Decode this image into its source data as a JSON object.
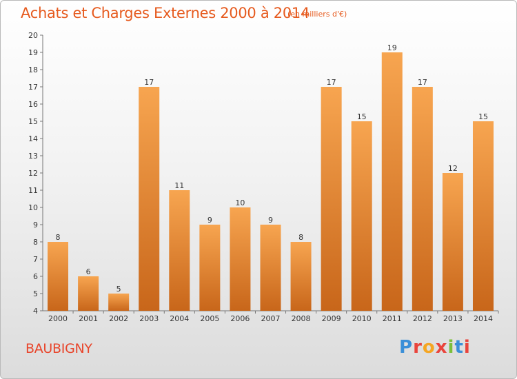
{
  "title": "Achats et Charges Externes 2000 à 2014",
  "subtitle": "(en milliers d'€)",
  "commune": "BAUBIGNY",
  "logo": {
    "text": "Proxiti",
    "colors": [
      "#3a8fd8",
      "#e9443c",
      "#f5a623",
      "#e9443c",
      "#7bbf3a",
      "#3a8fd8",
      "#e9443c"
    ]
  },
  "colors": {
    "bar_light": "#f7a550",
    "bar_dark": "#c8661a",
    "title": "#e65a1e",
    "commune": "#e8452b"
  },
  "chart_data": {
    "type": "bar",
    "categories": [
      "2000",
      "2001",
      "2002",
      "2003",
      "2004",
      "2005",
      "2006",
      "2007",
      "2008",
      "2009",
      "2010",
      "2011",
      "2012",
      "2013",
      "2014"
    ],
    "values": [
      8,
      6,
      5,
      17,
      11,
      9,
      10,
      9,
      8,
      17,
      15,
      19,
      17,
      12,
      15
    ],
    "ylim": [
      4,
      20
    ],
    "yticks": [
      4,
      5,
      6,
      7,
      8,
      9,
      10,
      11,
      12,
      13,
      14,
      15,
      16,
      17,
      18,
      19,
      20
    ],
    "grid": false,
    "data_labels": true
  }
}
